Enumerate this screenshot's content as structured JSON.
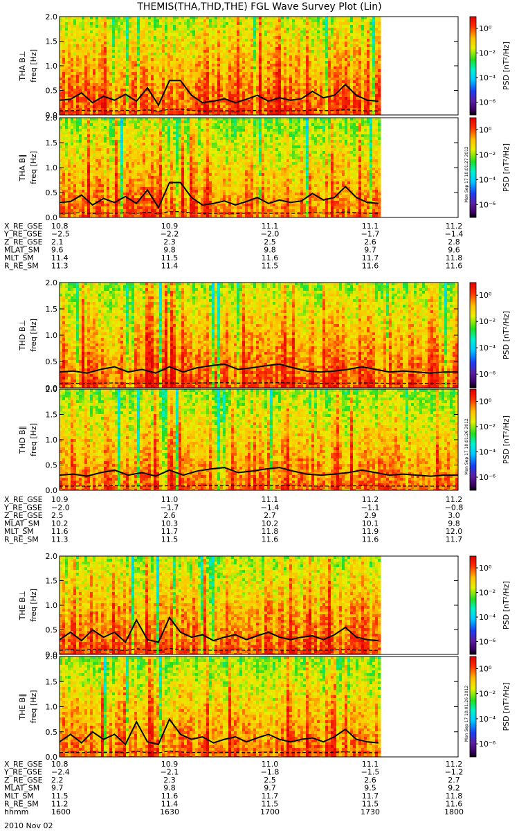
{
  "title": "THEMIS(THA,THD,THE) FGL Wave Survey Plot (Lin)",
  "date": "2010 Nov 02",
  "colors": {
    "background": "#ffffff",
    "text": "#000000",
    "line": "#000000"
  },
  "colorbar": {
    "label": "PSD [nT²/Hz]",
    "tick_labels": [
      "10⁰",
      "10⁻²",
      "10⁻⁴",
      "10⁻⁶"
    ],
    "stamps": [
      "Mon Sep 17 10:01:27 2012",
      "Mon Sep 17 10:01:26 2012",
      "Mon Sep 17 10:01:26 2012"
    ],
    "scale": "log"
  },
  "chart_data": [
    {
      "type": "heatmap",
      "panels": [
        {
          "ylabel": "THA B⊥",
          "yunit": "freq [Hz]"
        },
        {
          "ylabel": "THA B∥",
          "yunit": "freq [Hz]"
        }
      ],
      "ylim": [
        0,
        2.0
      ],
      "yticks": [
        "0.0",
        "0.5",
        "1.0",
        "1.5",
        "2.0"
      ],
      "data_end_fraction": 0.8,
      "line_solid": [
        0.3,
        0.32,
        0.45,
        0.25,
        0.38,
        0.3,
        0.42,
        0.28,
        0.55,
        0.2,
        0.7,
        0.7,
        0.4,
        0.25,
        0.28,
        0.33,
        0.25,
        0.32,
        0.4,
        0.28,
        0.35,
        0.3,
        0.33,
        0.48,
        0.35,
        0.4,
        0.62,
        0.4,
        0.3,
        0.28
      ],
      "ephemeris": {
        "labels": [
          "X_RE_GSE",
          "Y_RE_GSE",
          "Z_RE_GSE",
          "MLAT_SM",
          "MLT_SM",
          "R_RE_SM"
        ],
        "columns": [
          [
            "10.8",
            "−2.5",
            "2.1",
            "9.6",
            "11.4",
            "11.3"
          ],
          [
            "10.9",
            "−2.2",
            "2.3",
            "9.8",
            "11.5",
            "11.4"
          ],
          [
            "11.1",
            "−2.0",
            "2.5",
            "9.8",
            "11.6",
            "11.5"
          ],
          [
            "11.1",
            "−1.7",
            "2.6",
            "9.7",
            "11.7",
            "11.6"
          ],
          [
            "11.2",
            "−1.4",
            "2.8",
            "9.6",
            "11.8",
            "11.6"
          ]
        ]
      }
    },
    {
      "type": "heatmap",
      "panels": [
        {
          "ylabel": "THD B⊥",
          "yunit": "freq [Hz]"
        },
        {
          "ylabel": "THD B∥",
          "yunit": "freq [Hz]"
        }
      ],
      "ylim": [
        0,
        2.0
      ],
      "yticks": [
        "0.0",
        "0.5",
        "1.0",
        "1.5",
        "2.0"
      ],
      "data_end_fraction": 1.0,
      "line_solid": [
        0.3,
        0.32,
        0.28,
        0.35,
        0.4,
        0.3,
        0.35,
        0.28,
        0.4,
        0.3,
        0.38,
        0.42,
        0.45,
        0.35,
        0.38,
        0.42,
        0.45,
        0.38,
        0.32,
        0.3,
        0.32,
        0.35,
        0.4,
        0.35,
        0.3,
        0.32,
        0.3,
        0.28,
        0.3,
        0.3
      ],
      "ephemeris": {
        "labels": [
          "X_RE_GSE",
          "Y_RE_GSE",
          "Z_RE_GSE",
          "MLAT_SM",
          "MLT_SM",
          "R_RE_SM"
        ],
        "columns": [
          [
            "10.9",
            "−2.0",
            "2.5",
            "10.2",
            "11.6",
            "11.3"
          ],
          [
            "11.0",
            "−1.7",
            "2.6",
            "10.3",
            "11.7",
            "11.5"
          ],
          [
            "11.1",
            "−1.4",
            "2.7",
            "10.2",
            "11.8",
            "11.6"
          ],
          [
            "11.2",
            "−1.1",
            "2.9",
            "10.1",
            "11.9",
            "11.6"
          ],
          [
            "11.2",
            "−0.8",
            "3.0",
            "9.8",
            "12.0",
            "11.7"
          ]
        ]
      }
    },
    {
      "type": "heatmap",
      "panels": [
        {
          "ylabel": "THE B⊥",
          "yunit": "freq [Hz]"
        },
        {
          "ylabel": "THE B∥",
          "yunit": "freq [Hz]"
        }
      ],
      "ylim": [
        0,
        2.0
      ],
      "yticks": [
        "0.0",
        "0.5",
        "1.0",
        "1.5",
        "2.0"
      ],
      "data_end_fraction": 0.8,
      "line_solid": [
        0.3,
        0.45,
        0.28,
        0.5,
        0.35,
        0.45,
        0.25,
        0.7,
        0.3,
        0.25,
        0.75,
        0.45,
        0.35,
        0.4,
        0.28,
        0.35,
        0.4,
        0.3,
        0.38,
        0.45,
        0.35,
        0.3,
        0.35,
        0.38,
        0.3,
        0.4,
        0.55,
        0.35,
        0.3,
        0.28
      ],
      "ephemeris": {
        "labels": [
          "X_RE_GSE",
          "Y_RE_GSE",
          "Z_RE_GSE",
          "MLAT_SM",
          "MLT_SM",
          "R_RE_SM",
          "hhmm"
        ],
        "columns": [
          [
            "10.8",
            "−2.4",
            "2.2",
            "9.7",
            "11.5",
            "11.2",
            "1600"
          ],
          [
            "10.9",
            "−2.1",
            "2.3",
            "9.8",
            "11.6",
            "11.4",
            "1630"
          ],
          [
            "11.0",
            "−1.8",
            "2.5",
            "9.7",
            "11.7",
            "11.5",
            "1700"
          ],
          [
            "11.1",
            "−1.5",
            "2.6",
            "9.5",
            "11.7",
            "11.5",
            "1730"
          ],
          [
            "11.2",
            "−1.2",
            "2.7",
            "9.2",
            "11.8",
            "11.6",
            "1800"
          ]
        ]
      }
    }
  ]
}
